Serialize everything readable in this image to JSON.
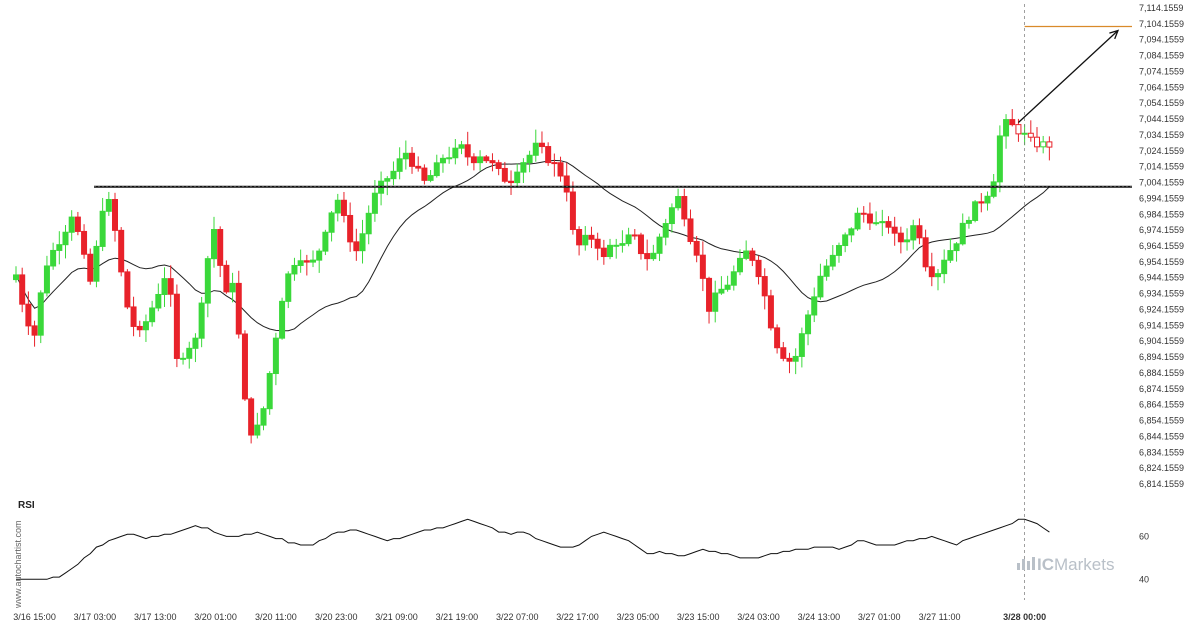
{
  "colors": {
    "up": "#3ad83a",
    "down": "#e8222a",
    "ma": "#222222",
    "level": "#111111",
    "target": "#d98a2a",
    "arrow": "#111111"
  },
  "icons": {
    "brand_logo": "bars-logo-icon"
  },
  "watermark": "www.autochartist.com",
  "brand": {
    "prefix": "IC",
    "name": "Markets"
  },
  "chart_data": {
    "type": "candlestick",
    "x_tick_labels": [
      "3/16 15:00",
      "3/17 03:00",
      "3/17 13:00",
      "3/20 01:00",
      "3/20 11:00",
      "3/20 23:00",
      "3/21 09:00",
      "3/21 19:00",
      "3/22 07:00",
      "3/22 17:00",
      "3/23 05:00",
      "3/23 15:00",
      "3/24 03:00",
      "3/24 13:00",
      "3/27 01:00",
      "3/27 11:00",
      "3/28 00:00"
    ],
    "highlighted_x_label": "3/28 00:00",
    "y_tick_labels": [
      "7,114.1559",
      "7,104.1559",
      "7,094.1559",
      "7,084.1559",
      "7,074.1559",
      "7,064.1559",
      "7,054.1559",
      "7,044.1559",
      "7,034.1559",
      "7,024.1559",
      "7,014.1559",
      "7,004.1559",
      "6,994.1559",
      "6,984.1559",
      "6,974.1559",
      "6,964.1559",
      "6,954.1559",
      "6,944.1559",
      "6,934.1559",
      "6,924.1559",
      "6,914.1559",
      "6,904.1559",
      "6,894.1559",
      "6,884.1559",
      "6,874.1559",
      "6,864.1559",
      "6,854.1559",
      "6,844.1559",
      "6,834.1559",
      "6,824.1559",
      "6,814.1559"
    ],
    "ylim": [
      6814.16,
      7114.16
    ],
    "level": 7001.5,
    "target_level": 7102.5,
    "arrow": {
      "from_index": 162,
      "from_value": 7042,
      "to_index": 183,
      "to_value": 7100
    },
    "forecast_start_index": 163,
    "close_path": [
      6946,
      6920,
      6908,
      6950,
      6962,
      6972,
      6986,
      6960,
      6938,
      6988,
      6992,
      6950,
      6918,
      6908,
      6920,
      6935,
      6950,
      6890,
      6900,
      6905,
      6950,
      6978,
      6930,
      6945,
      6870,
      6842,
      6858,
      6892,
      6930,
      6952,
      6958,
      6950,
      6962,
      6983,
      6994,
      6972,
      6960,
      6982,
      6998,
      7006,
      7012,
      7024,
      7015,
      7004,
      7010,
      7020,
      7022,
      7026,
      7018,
      7022,
      7017,
      7010,
      7004,
      7015,
      7020,
      7028,
      7020,
      7014,
      7004,
      6962,
      6968,
      6970,
      6956,
      6968,
      6964,
      6972,
      6960,
      6955,
      6972,
      6986,
      6996,
      6972,
      6958,
      6924,
      6934,
      6940,
      6950,
      6960,
      6955,
      6932,
      6905,
      6895,
      6890,
      6910,
      6930,
      6948,
      6955,
      6965,
      6975,
      6986,
      6982,
      6976,
      6978,
      6966,
      6970,
      6980,
      6952,
      6945,
      6958,
      6965,
      6978,
      6988,
      6994,
      7002,
      7042,
      7040,
      7036,
      7030,
      7028,
      7028
    ],
    "candles_per_segment": 6,
    "candle_count": 168,
    "rsi": {
      "label": "RSI",
      "y_tick_labels": [
        "60",
        "40"
      ],
      "ylim": [
        35,
        70
      ],
      "path": [
        40,
        40,
        40,
        40,
        41,
        44,
        48,
        52,
        56,
        58,
        60,
        61,
        59,
        60,
        61,
        61,
        63,
        65,
        64,
        62,
        60,
        60,
        61,
        62,
        60,
        59,
        57,
        56,
        56,
        58,
        61,
        62,
        63,
        62,
        60,
        58,
        59,
        60,
        62,
        63,
        64,
        65,
        67,
        68,
        66,
        64,
        62,
        61,
        62,
        60,
        58,
        56,
        55,
        55,
        58,
        61,
        62,
        60,
        58,
        55,
        52,
        53,
        52,
        51,
        52,
        54,
        53,
        52,
        51,
        50,
        50,
        51,
        52,
        53,
        54,
        54,
        55,
        55,
        54,
        56,
        58,
        57,
        56,
        56,
        57,
        58,
        59,
        60,
        58,
        56,
        58,
        60,
        62,
        63,
        65,
        68,
        68,
        65,
        62
      ]
    }
  }
}
